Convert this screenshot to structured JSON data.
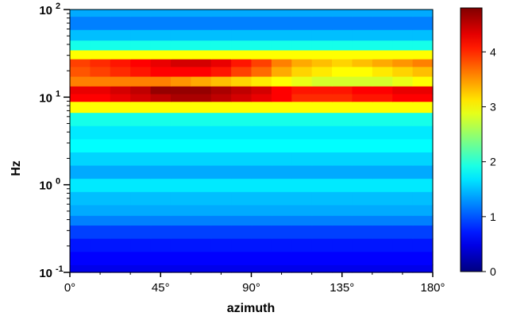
{
  "chart_data": {
    "type": "heatmap",
    "xlabel": "azimuth",
    "ylabel": "Hz",
    "x_ticks": [
      "0°",
      "45°",
      "90°",
      "135°",
      "180°"
    ],
    "x_tick_values": [
      0,
      45,
      90,
      135,
      180
    ],
    "xlim": [
      0,
      180
    ],
    "y_scale": "log",
    "ylim": [
      0.1,
      100
    ],
    "y_ticks": [
      {
        "value": 0.1,
        "base": "10",
        "exp": "-1"
      },
      {
        "value": 1,
        "base": "10",
        "exp": "0"
      },
      {
        "value": 10,
        "base": "10",
        "exp": "1"
      },
      {
        "value": 100,
        "base": "10",
        "exp": "2"
      }
    ],
    "colorbar": {
      "range": [
        0,
        4.8
      ],
      "ticks": [
        "0",
        "1",
        "2",
        "3",
        "4"
      ],
      "tick_values": [
        0,
        1,
        2,
        3,
        4
      ],
      "colormap": "jet"
    },
    "azimuth_columns": [
      0,
      10,
      20,
      30,
      40,
      50,
      60,
      70,
      80,
      90,
      100,
      110,
      120,
      130,
      140,
      150,
      160,
      170
    ],
    "frequency_rows_hz": [
      0.1,
      0.15,
      0.2,
      0.3,
      0.4,
      0.5,
      0.7,
      1.0,
      1.4,
      2.0,
      2.8,
      4.0,
      5.6,
      8.0,
      10,
      12,
      15,
      20,
      25,
      30,
      40,
      50,
      70,
      100
    ],
    "values": [
      [
        0.5,
        0.5,
        0.5,
        0.5,
        0.5,
        0.5,
        0.5,
        0.5,
        0.5,
        0.5,
        0.5,
        0.5,
        0.5,
        0.5,
        0.5,
        0.5,
        0.5,
        0.5
      ],
      [
        0.6,
        0.6,
        0.6,
        0.6,
        0.6,
        0.6,
        0.6,
        0.6,
        0.6,
        0.6,
        0.6,
        0.6,
        0.6,
        0.6,
        0.6,
        0.6,
        0.6,
        0.6
      ],
      [
        0.7,
        0.7,
        0.7,
        0.7,
        0.7,
        0.7,
        0.7,
        0.7,
        0.7,
        0.7,
        0.7,
        0.7,
        0.7,
        0.7,
        0.7,
        0.7,
        0.7,
        0.7
      ],
      [
        0.9,
        0.9,
        0.9,
        0.9,
        0.9,
        0.9,
        0.9,
        0.9,
        0.9,
        0.9,
        0.9,
        0.9,
        0.9,
        0.9,
        0.9,
        0.9,
        0.9,
        0.9
      ],
      [
        1.2,
        1.2,
        1.2,
        1.2,
        1.2,
        1.2,
        1.2,
        1.2,
        1.2,
        1.2,
        1.2,
        1.2,
        1.2,
        1.2,
        1.2,
        1.2,
        1.2,
        1.2
      ],
      [
        1.4,
        1.4,
        1.4,
        1.4,
        1.4,
        1.4,
        1.4,
        1.4,
        1.4,
        1.4,
        1.4,
        1.4,
        1.4,
        1.4,
        1.4,
        1.4,
        1.4,
        1.4
      ],
      [
        1.5,
        1.5,
        1.5,
        1.5,
        1.5,
        1.5,
        1.5,
        1.5,
        1.5,
        1.5,
        1.5,
        1.5,
        1.5,
        1.5,
        1.5,
        1.5,
        1.5,
        1.5
      ],
      [
        1.7,
        1.7,
        1.7,
        1.7,
        1.7,
        1.7,
        1.7,
        1.7,
        1.7,
        1.7,
        1.7,
        1.7,
        1.7,
        1.7,
        1.7,
        1.7,
        1.7,
        1.7
      ],
      [
        1.4,
        1.4,
        1.4,
        1.4,
        1.4,
        1.4,
        1.4,
        1.4,
        1.4,
        1.4,
        1.4,
        1.4,
        1.4,
        1.4,
        1.4,
        1.4,
        1.4,
        1.4
      ],
      [
        1.6,
        1.6,
        1.6,
        1.6,
        1.6,
        1.6,
        1.6,
        1.6,
        1.6,
        1.6,
        1.6,
        1.6,
        1.6,
        1.6,
        1.6,
        1.6,
        1.6,
        1.6
      ],
      [
        1.8,
        1.8,
        1.8,
        1.8,
        1.8,
        1.8,
        1.8,
        1.8,
        1.8,
        1.8,
        1.8,
        1.8,
        1.8,
        1.8,
        1.8,
        1.8,
        1.8,
        1.8
      ],
      [
        1.7,
        1.7,
        1.7,
        1.7,
        1.7,
        1.7,
        1.7,
        1.7,
        1.7,
        1.7,
        1.7,
        1.7,
        1.7,
        1.7,
        1.7,
        1.7,
        1.7,
        1.7
      ],
      [
        1.9,
        1.9,
        1.9,
        1.9,
        1.9,
        1.9,
        1.9,
        1.9,
        1.9,
        1.9,
        1.9,
        1.9,
        1.9,
        1.9,
        1.9,
        1.9,
        1.9,
        1.9
      ],
      [
        3.0,
        3.0,
        3.0,
        3.0,
        3.0,
        3.0,
        3.0,
        3.0,
        3.0,
        3.0,
        3.0,
        3.0,
        3.0,
        3.0,
        3.0,
        3.0,
        3.0,
        3.0
      ],
      [
        4.2,
        4.2,
        4.3,
        4.4,
        4.5,
        4.6,
        4.6,
        4.5,
        4.4,
        4.3,
        4.2,
        4.0,
        4.0,
        4.0,
        4.1,
        4.1,
        4.2,
        4.2
      ],
      [
        4.3,
        4.3,
        4.4,
        4.5,
        4.7,
        4.7,
        4.7,
        4.6,
        4.5,
        4.4,
        4.2,
        4.1,
        4.1,
        4.1,
        4.2,
        4.2,
        4.3,
        4.3
      ],
      [
        3.6,
        3.6,
        3.6,
        3.6,
        3.6,
        3.5,
        3.4,
        3.3,
        3.2,
        3.1,
        3.0,
        2.9,
        2.8,
        2.8,
        2.8,
        2.8,
        2.9,
        3.0
      ],
      [
        3.8,
        3.9,
        4.0,
        4.1,
        4.2,
        4.2,
        4.2,
        4.1,
        3.9,
        3.7,
        3.4,
        3.2,
        3.1,
        3.0,
        3.0,
        3.1,
        3.2,
        3.3
      ],
      [
        3.9,
        4.0,
        4.1,
        4.2,
        4.3,
        4.4,
        4.4,
        4.3,
        4.1,
        3.9,
        3.6,
        3.4,
        3.3,
        3.2,
        3.3,
        3.4,
        3.5,
        3.6
      ],
      [
        3.0,
        3.0,
        3.0,
        3.0,
        3.0,
        3.0,
        3.0,
        3.0,
        3.0,
        3.0,
        3.0,
        3.0,
        3.0,
        3.0,
        3.0,
        3.0,
        3.0,
        3.0
      ],
      [
        1.9,
        1.9,
        1.9,
        1.9,
        1.9,
        1.9,
        1.9,
        1.9,
        1.9,
        1.9,
        1.9,
        1.9,
        1.9,
        1.9,
        1.9,
        1.9,
        1.9,
        1.9
      ],
      [
        1.5,
        1.5,
        1.5,
        1.5,
        1.5,
        1.5,
        1.5,
        1.5,
        1.5,
        1.5,
        1.5,
        1.5,
        1.5,
        1.5,
        1.5,
        1.5,
        1.5,
        1.5
      ],
      [
        1.2,
        1.2,
        1.2,
        1.2,
        1.2,
        1.2,
        1.2,
        1.2,
        1.2,
        1.2,
        1.2,
        1.2,
        1.2,
        1.2,
        1.2,
        1.2,
        1.2,
        1.2
      ],
      [
        1.4,
        1.4,
        1.4,
        1.4,
        1.4,
        1.4,
        1.4,
        1.4,
        1.4,
        1.4,
        1.4,
        1.4,
        1.4,
        1.4,
        1.4,
        1.4,
        1.4,
        1.4
      ]
    ]
  }
}
